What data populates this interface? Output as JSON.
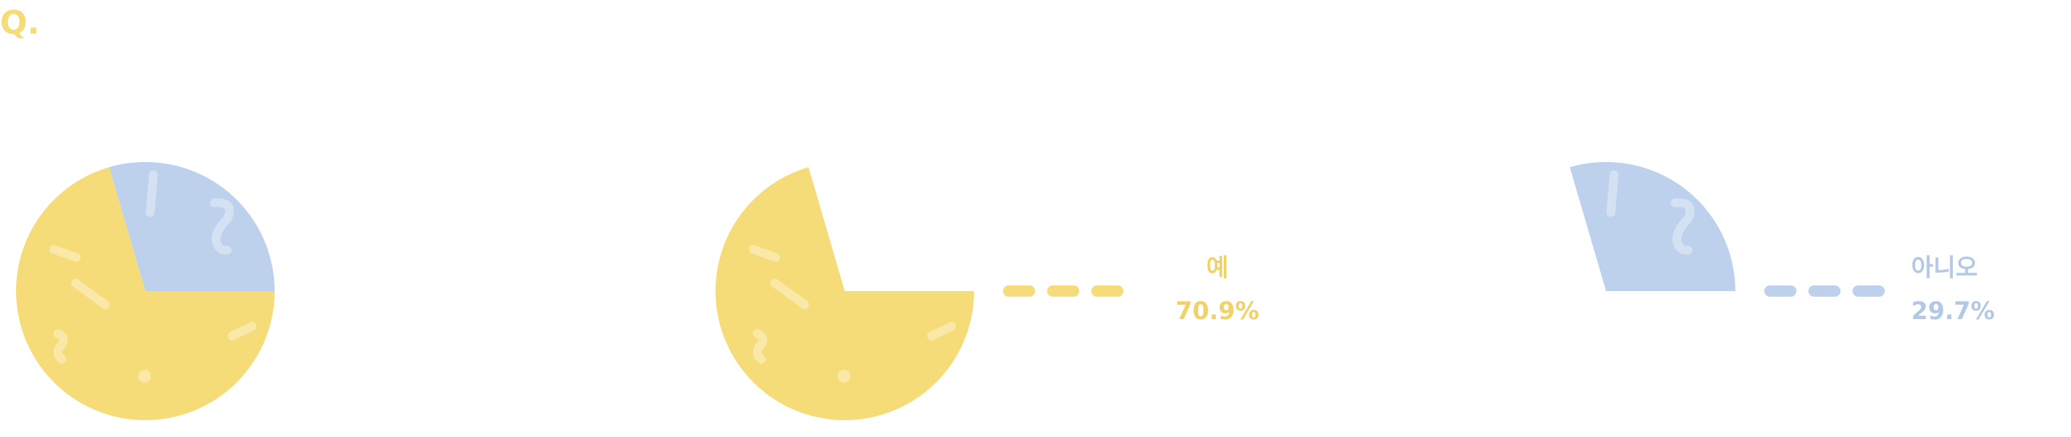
{
  "question_marker": "Q.",
  "chart_data": {
    "type": "pie",
    "categories": [
      "예",
      "아니오"
    ],
    "values": [
      70.9,
      29.7
    ],
    "value_labels": [
      "70.9%",
      "29.7%"
    ],
    "title": "",
    "colors": {
      "yes": "#F6DC78",
      "no": "#BDD1EC",
      "yes_text": "#F2D266",
      "no_text": "#B3C8E6",
      "marker": "#F6DC78"
    },
    "legend": "right"
  }
}
